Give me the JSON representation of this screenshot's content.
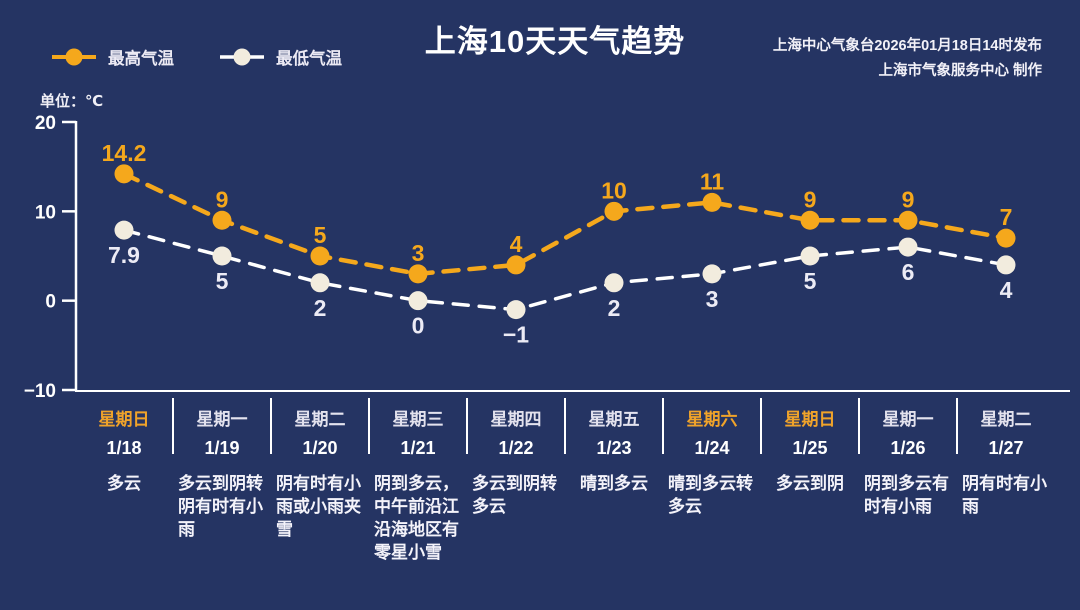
{
  "header": {
    "title": "上海10天天气趋势",
    "issued": "上海中心气象台2026年01月18日14时发布",
    "producer": "上海市气象服务中心  制作"
  },
  "legend": {
    "max_label": "最高气温",
    "min_label": "最低气温"
  },
  "unit_label": "单位：℃",
  "colors": {
    "background": "#253463",
    "max_series": "#F5A81C",
    "min_series_dot": "#F2ECDE",
    "min_series_line": "#FFFFFF",
    "min_value_label": "#ECEBF5",
    "axis": "#FFFFFF",
    "highlight_day": "#F0A32A",
    "weekday_normal": "#E3E2EE"
  },
  "chart_data": {
    "type": "line",
    "title": "上海10天天气趋势",
    "unit": "℃",
    "ylim": [
      -10,
      20
    ],
    "yticks": [
      20,
      10,
      0,
      -10
    ],
    "grid": false,
    "legend_position": "top-left",
    "categories": [
      "1/18",
      "1/19",
      "1/20",
      "1/21",
      "1/22",
      "1/23",
      "1/24",
      "1/25",
      "1/26",
      "1/27"
    ],
    "series": [
      {
        "name": "最高气温",
        "color": "#F5A81C",
        "values": [
          14.2,
          9,
          5,
          3,
          4,
          10,
          11,
          9,
          9,
          7
        ]
      },
      {
        "name": "最低气温",
        "color": "#F2ECDE",
        "values": [
          7.9,
          5,
          2,
          0,
          -1,
          2,
          3,
          5,
          6,
          4
        ]
      }
    ]
  },
  "days": [
    {
      "weekday": "星期日",
      "date": "1/18",
      "weather": "多云",
      "highlight": true
    },
    {
      "weekday": "星期一",
      "date": "1/19",
      "weather": "多云到阴转阴有时有小雨",
      "highlight": false
    },
    {
      "weekday": "星期二",
      "date": "1/20",
      "weather": "阴有时有小雨或小雨夹雪",
      "highlight": false
    },
    {
      "weekday": "星期三",
      "date": "1/21",
      "weather": "阴到多云，中午前沿江沿海地区有零星小雪",
      "highlight": false
    },
    {
      "weekday": "星期四",
      "date": "1/22",
      "weather": "多云到阴转多云",
      "highlight": false
    },
    {
      "weekday": "星期五",
      "date": "1/23",
      "weather": "晴到多云",
      "highlight": false
    },
    {
      "weekday": "星期六",
      "date": "1/24",
      "weather": "晴到多云转多云",
      "highlight": true
    },
    {
      "weekday": "星期日",
      "date": "1/25",
      "weather": "多云到阴",
      "highlight": true
    },
    {
      "weekday": "星期一",
      "date": "1/26",
      "weather": "阴到多云有时有小雨",
      "highlight": false
    },
    {
      "weekday": "星期二",
      "date": "1/27",
      "weather": "阴有时有小雨",
      "highlight": false
    }
  ]
}
